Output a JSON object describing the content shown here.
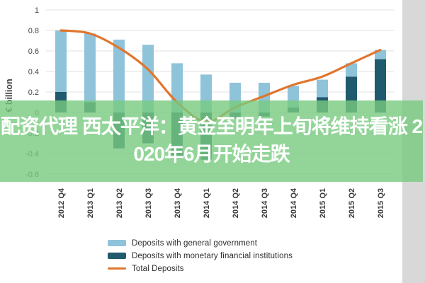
{
  "banner": {
    "line1": "配资代理 西太平洋：黄金至明年上旬将维持看涨 2",
    "line2": "020年6月开始走跌",
    "text_color": "#ffffff",
    "background": "rgba(120,202,127,0.8)"
  },
  "chart_data": {
    "type": "bar",
    "title": "",
    "ylabel": "€ billion",
    "ylim": [
      -0.6,
      1.0
    ],
    "ytick_labels": [
      "1",
      "0.8",
      "0.6",
      "0.4",
      "0.2",
      "0",
      "-0.2",
      "-0.4",
      "-0.6"
    ],
    "grid": true,
    "legend_position": "bottom",
    "categories": [
      "2012 Q4",
      "2013 Q1",
      "2013 Q2",
      "2013 Q3",
      "2013 Q4",
      "2014 Q1",
      "2014 Q2",
      "2014 Q3",
      "2014 Q4",
      "2015 Q1",
      "2015 Q2",
      "2015 Q3"
    ],
    "series": [
      {
        "name": "Deposits with general government",
        "type": "bar",
        "stack": "deposits",
        "color": "#8fc3da",
        "values": [
          0.6,
          0.67,
          0.71,
          0.66,
          0.48,
          0.37,
          0.29,
          0.29,
          0.21,
          0.17,
          0.13,
          0.09
        ]
      },
      {
        "name": "Deposits with monetary financial institutions",
        "type": "bar",
        "stack": "deposits",
        "color": "#1f5a6e",
        "values": [
          0.2,
          0.1,
          -0.35,
          -0.3,
          -0.45,
          -0.46,
          -0.06,
          -0.04,
          0.05,
          0.15,
          0.35,
          0.52
        ]
      },
      {
        "name": "Total Deposits",
        "type": "line",
        "color": "#e0762e",
        "values": [
          0.8,
          0.77,
          0.63,
          0.42,
          0.1,
          -0.09,
          0.05,
          0.16,
          0.27,
          0.35,
          0.48,
          0.61
        ]
      }
    ]
  },
  "colors": {
    "grid": "#e8e8e8",
    "axis_text": "#454545",
    "right_strip": "#d8d8d8",
    "background": "#ffffff"
  }
}
